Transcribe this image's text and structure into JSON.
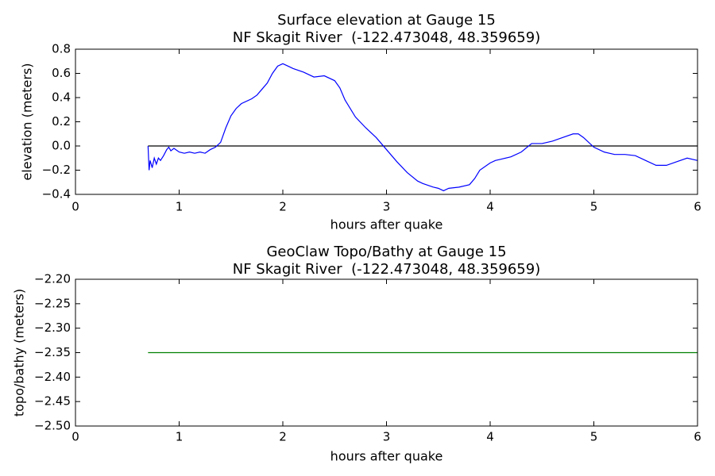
{
  "chart_data": [
    {
      "type": "line",
      "title": [
        "Surface elevation at Gauge 15",
        "NF Skagit River  (-122.473048, 48.359659)"
      ],
      "x_label": "hours after quake",
      "y_label": "elevation (meters)",
      "xlim": [
        0,
        6
      ],
      "xticks": [
        0,
        1,
        2,
        3,
        4,
        5,
        6
      ],
      "ylim": [
        -0.4,
        0.8
      ],
      "yticks": [
        {
          "value": -0.4,
          "label": "−0.4"
        },
        {
          "value": -0.2,
          "label": "−0.2"
        },
        {
          "value": 0,
          "label": "0.0"
        },
        0.2,
        0.4,
        0.6,
        0.8
      ],
      "color": "#0000ff",
      "x": [
        0.7,
        0.71,
        0.72,
        0.74,
        0.76,
        0.78,
        0.8,
        0.82,
        0.85,
        0.88,
        0.9,
        0.92,
        0.95,
        1.0,
        1.05,
        1.1,
        1.15,
        1.2,
        1.25,
        1.3,
        1.35,
        1.4,
        1.45,
        1.5,
        1.55,
        1.6,
        1.7,
        1.75,
        1.8,
        1.85,
        1.9,
        1.95,
        2.0,
        2.05,
        2.1,
        2.2,
        2.3,
        2.4,
        2.5,
        2.55,
        2.6,
        2.7,
        2.8,
        2.9,
        3.0,
        3.1,
        3.2,
        3.3,
        3.35,
        3.45,
        3.5,
        3.55,
        3.6,
        3.7,
        3.8,
        3.85,
        3.9,
        4.0,
        4.05,
        4.1,
        4.2,
        4.3,
        4.4,
        4.45,
        4.5,
        4.6,
        4.7,
        4.8,
        4.85,
        4.9,
        5.0,
        5.1,
        5.2,
        5.3,
        5.4,
        5.5,
        5.6,
        5.7,
        5.8,
        5.9,
        6.0
      ],
      "values": [
        0.0,
        -0.2,
        -0.12,
        -0.18,
        -0.1,
        -0.15,
        -0.1,
        -0.12,
        -0.08,
        -0.03,
        -0.01,
        -0.04,
        -0.02,
        -0.05,
        -0.06,
        -0.05,
        -0.06,
        -0.05,
        -0.06,
        -0.03,
        -0.01,
        0.03,
        0.15,
        0.25,
        0.31,
        0.35,
        0.39,
        0.42,
        0.47,
        0.52,
        0.6,
        0.66,
        0.68,
        0.66,
        0.64,
        0.61,
        0.57,
        0.58,
        0.54,
        0.48,
        0.38,
        0.24,
        0.15,
        0.07,
        -0.03,
        -0.13,
        -0.22,
        -0.29,
        -0.31,
        -0.34,
        -0.35,
        -0.37,
        -0.35,
        -0.34,
        -0.32,
        -0.27,
        -0.2,
        -0.14,
        -0.12,
        -0.11,
        -0.09,
        -0.05,
        0.02,
        0.02,
        0.02,
        0.04,
        0.07,
        0.1,
        0.1,
        0.07,
        -0.01,
        -0.05,
        -0.07,
        -0.07,
        -0.08,
        -0.12,
        -0.16,
        -0.16,
        -0.13,
        -0.1,
        -0.12
      ],
      "reference_line": {
        "x": [
          0.7,
          6
        ],
        "values": [
          0,
          0
        ],
        "color": "#000000"
      }
    },
    {
      "type": "line",
      "title": [
        "GeoClaw Topo/Bathy at Gauge 15",
        "NF Skagit River  (-122.473048, 48.359659)"
      ],
      "x_label": "hours after quake",
      "y_label": "topo/bathy (meters)",
      "xlim": [
        0,
        6
      ],
      "xticks": [
        0,
        1,
        2,
        3,
        4,
        5,
        6
      ],
      "ylim": [
        -2.5,
        -2.2
      ],
      "yticks": [
        {
          "value": -2.5,
          "label": "−2.50"
        },
        {
          "value": -2.45,
          "label": "−2.45"
        },
        {
          "value": -2.4,
          "label": "−2.40"
        },
        {
          "value": -2.35,
          "label": "−2.35"
        },
        {
          "value": -2.3,
          "label": "−2.30"
        },
        {
          "value": -2.25,
          "label": "−2.25"
        },
        {
          "value": -2.2,
          "label": "−2.20"
        }
      ],
      "color": "#008000",
      "x": [
        0.7,
        6
      ],
      "values": [
        -2.35,
        -2.35
      ]
    }
  ]
}
